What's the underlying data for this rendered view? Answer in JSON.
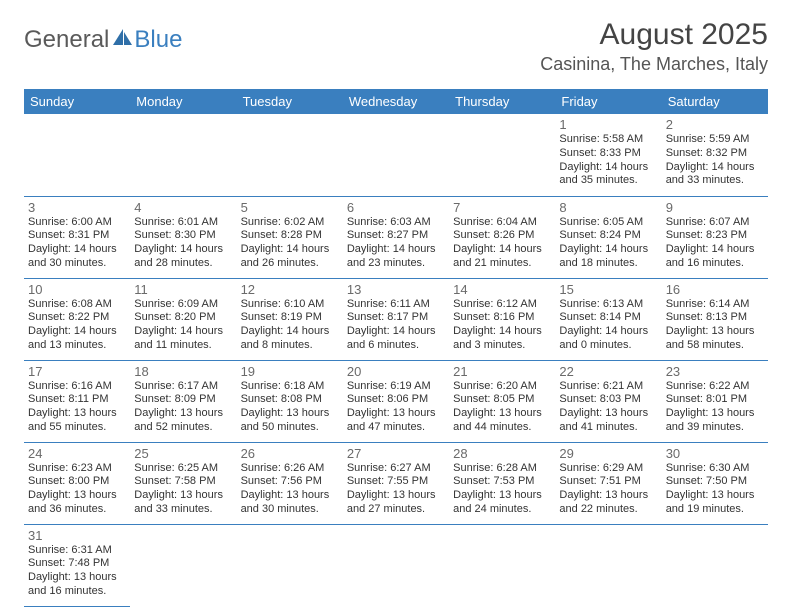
{
  "logo": {
    "general": "General",
    "blue": "Blue"
  },
  "title": "August 2025",
  "location": "Casinina, The Marches, Italy",
  "colors": {
    "header_bg": "#3a7fbf",
    "header_text": "#ffffff",
    "border": "#3a7fbf",
    "daynum": "#6a6a6a",
    "body_text": "#333333",
    "page_bg": "#ffffff",
    "logo_gray": "#5a5a5a",
    "logo_blue": "#3a7fbf"
  },
  "typography": {
    "title_fontsize": 30,
    "location_fontsize": 18,
    "header_fontsize": 13,
    "daynum_fontsize": 13,
    "body_fontsize": 11
  },
  "weekdays": [
    "Sunday",
    "Monday",
    "Tuesday",
    "Wednesday",
    "Thursday",
    "Friday",
    "Saturday"
  ],
  "weeks": [
    [
      null,
      null,
      null,
      null,
      null,
      {
        "n": "1",
        "sr": "Sunrise: 5:58 AM",
        "ss": "Sunset: 8:33 PM",
        "dl": "Daylight: 14 hours and 35 minutes."
      },
      {
        "n": "2",
        "sr": "Sunrise: 5:59 AM",
        "ss": "Sunset: 8:32 PM",
        "dl": "Daylight: 14 hours and 33 minutes."
      }
    ],
    [
      {
        "n": "3",
        "sr": "Sunrise: 6:00 AM",
        "ss": "Sunset: 8:31 PM",
        "dl": "Daylight: 14 hours and 30 minutes."
      },
      {
        "n": "4",
        "sr": "Sunrise: 6:01 AM",
        "ss": "Sunset: 8:30 PM",
        "dl": "Daylight: 14 hours and 28 minutes."
      },
      {
        "n": "5",
        "sr": "Sunrise: 6:02 AM",
        "ss": "Sunset: 8:28 PM",
        "dl": "Daylight: 14 hours and 26 minutes."
      },
      {
        "n": "6",
        "sr": "Sunrise: 6:03 AM",
        "ss": "Sunset: 8:27 PM",
        "dl": "Daylight: 14 hours and 23 minutes."
      },
      {
        "n": "7",
        "sr": "Sunrise: 6:04 AM",
        "ss": "Sunset: 8:26 PM",
        "dl": "Daylight: 14 hours and 21 minutes."
      },
      {
        "n": "8",
        "sr": "Sunrise: 6:05 AM",
        "ss": "Sunset: 8:24 PM",
        "dl": "Daylight: 14 hours and 18 minutes."
      },
      {
        "n": "9",
        "sr": "Sunrise: 6:07 AM",
        "ss": "Sunset: 8:23 PM",
        "dl": "Daylight: 14 hours and 16 minutes."
      }
    ],
    [
      {
        "n": "10",
        "sr": "Sunrise: 6:08 AM",
        "ss": "Sunset: 8:22 PM",
        "dl": "Daylight: 14 hours and 13 minutes."
      },
      {
        "n": "11",
        "sr": "Sunrise: 6:09 AM",
        "ss": "Sunset: 8:20 PM",
        "dl": "Daylight: 14 hours and 11 minutes."
      },
      {
        "n": "12",
        "sr": "Sunrise: 6:10 AM",
        "ss": "Sunset: 8:19 PM",
        "dl": "Daylight: 14 hours and 8 minutes."
      },
      {
        "n": "13",
        "sr": "Sunrise: 6:11 AM",
        "ss": "Sunset: 8:17 PM",
        "dl": "Daylight: 14 hours and 6 minutes."
      },
      {
        "n": "14",
        "sr": "Sunrise: 6:12 AM",
        "ss": "Sunset: 8:16 PM",
        "dl": "Daylight: 14 hours and 3 minutes."
      },
      {
        "n": "15",
        "sr": "Sunrise: 6:13 AM",
        "ss": "Sunset: 8:14 PM",
        "dl": "Daylight: 14 hours and 0 minutes."
      },
      {
        "n": "16",
        "sr": "Sunrise: 6:14 AM",
        "ss": "Sunset: 8:13 PM",
        "dl": "Daylight: 13 hours and 58 minutes."
      }
    ],
    [
      {
        "n": "17",
        "sr": "Sunrise: 6:16 AM",
        "ss": "Sunset: 8:11 PM",
        "dl": "Daylight: 13 hours and 55 minutes."
      },
      {
        "n": "18",
        "sr": "Sunrise: 6:17 AM",
        "ss": "Sunset: 8:09 PM",
        "dl": "Daylight: 13 hours and 52 minutes."
      },
      {
        "n": "19",
        "sr": "Sunrise: 6:18 AM",
        "ss": "Sunset: 8:08 PM",
        "dl": "Daylight: 13 hours and 50 minutes."
      },
      {
        "n": "20",
        "sr": "Sunrise: 6:19 AM",
        "ss": "Sunset: 8:06 PM",
        "dl": "Daylight: 13 hours and 47 minutes."
      },
      {
        "n": "21",
        "sr": "Sunrise: 6:20 AM",
        "ss": "Sunset: 8:05 PM",
        "dl": "Daylight: 13 hours and 44 minutes."
      },
      {
        "n": "22",
        "sr": "Sunrise: 6:21 AM",
        "ss": "Sunset: 8:03 PM",
        "dl": "Daylight: 13 hours and 41 minutes."
      },
      {
        "n": "23",
        "sr": "Sunrise: 6:22 AM",
        "ss": "Sunset: 8:01 PM",
        "dl": "Daylight: 13 hours and 39 minutes."
      }
    ],
    [
      {
        "n": "24",
        "sr": "Sunrise: 6:23 AM",
        "ss": "Sunset: 8:00 PM",
        "dl": "Daylight: 13 hours and 36 minutes."
      },
      {
        "n": "25",
        "sr": "Sunrise: 6:25 AM",
        "ss": "Sunset: 7:58 PM",
        "dl": "Daylight: 13 hours and 33 minutes."
      },
      {
        "n": "26",
        "sr": "Sunrise: 6:26 AM",
        "ss": "Sunset: 7:56 PM",
        "dl": "Daylight: 13 hours and 30 minutes."
      },
      {
        "n": "27",
        "sr": "Sunrise: 6:27 AM",
        "ss": "Sunset: 7:55 PM",
        "dl": "Daylight: 13 hours and 27 minutes."
      },
      {
        "n": "28",
        "sr": "Sunrise: 6:28 AM",
        "ss": "Sunset: 7:53 PM",
        "dl": "Daylight: 13 hours and 24 minutes."
      },
      {
        "n": "29",
        "sr": "Sunrise: 6:29 AM",
        "ss": "Sunset: 7:51 PM",
        "dl": "Daylight: 13 hours and 22 minutes."
      },
      {
        "n": "30",
        "sr": "Sunrise: 6:30 AM",
        "ss": "Sunset: 7:50 PM",
        "dl": "Daylight: 13 hours and 19 minutes."
      }
    ],
    [
      {
        "n": "31",
        "sr": "Sunrise: 6:31 AM",
        "ss": "Sunset: 7:48 PM",
        "dl": "Daylight: 13 hours and 16 minutes."
      },
      null,
      null,
      null,
      null,
      null,
      null
    ]
  ]
}
